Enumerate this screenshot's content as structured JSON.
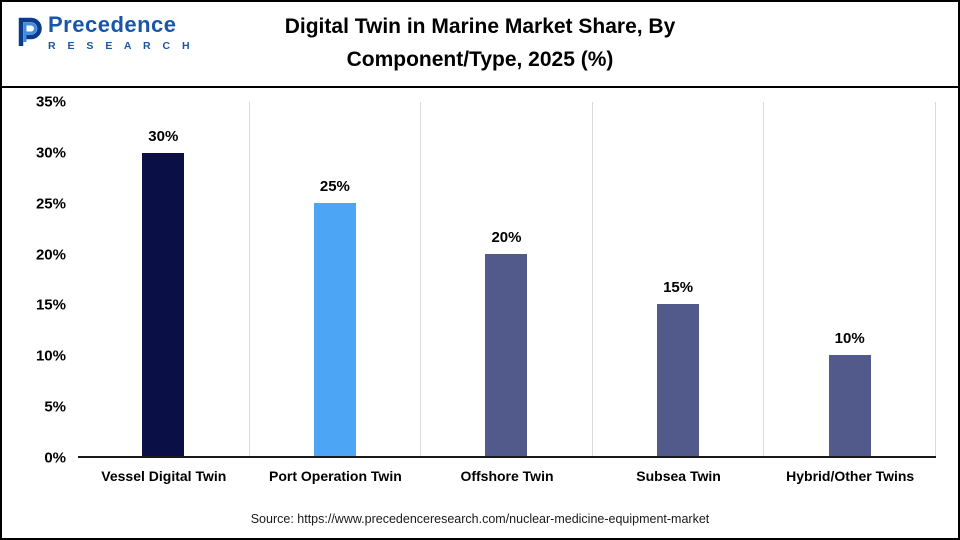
{
  "logo": {
    "name": "Precedence",
    "subtitle": "R E S E A R C H",
    "brand_color": "#1a56a8"
  },
  "header": {
    "title_lines": [
      "Digital Twin in Marine Market Share, By",
      "Component/Type, 2025 (%)"
    ]
  },
  "chart_data": {
    "type": "bar",
    "title": "Digital Twin in Marine Market Share, By Component/Type, 2025 (%)",
    "categories": [
      "Vessel Digital Twin",
      "Port Operation Twin",
      "Offshore Twin",
      "Subsea Twin",
      "Hybrid/Other Twins"
    ],
    "values": [
      30,
      25,
      20,
      15,
      10
    ],
    "value_labels": [
      "30%",
      "25%",
      "20%",
      "15%",
      "10%"
    ],
    "bar_colors": [
      "#0a1045",
      "#4da6f5",
      "#525a8c",
      "#525a8c",
      "#525a8c"
    ],
    "xlabel": "",
    "ylabel": "",
    "ylim": [
      0,
      35
    ],
    "ytick_step": 5,
    "ytick_labels": [
      "0%",
      "5%",
      "10%",
      "15%",
      "20%",
      "25%",
      "30%",
      "35%"
    ],
    "grid": "vertical category separators, light gray",
    "legend": "none"
  },
  "footer": {
    "source": "Source: https://www.precedenceresearch.com/nuclear-medicine-equipment-market"
  }
}
